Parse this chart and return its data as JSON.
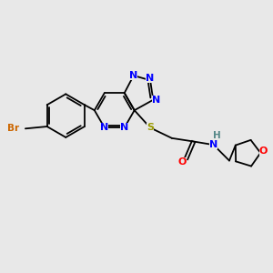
{
  "background_color": "#e8e8e8",
  "figsize": [
    3.0,
    3.0
  ],
  "dpi": 100,
  "bond_color": "#000000",
  "bond_width": 1.3,
  "bg": "#e8e8e8",
  "colors": {
    "N": "#0000ff",
    "Br": "#cc6600",
    "S": "#999900",
    "O": "#ff0000",
    "NH_H": "#558888",
    "C": "#000000"
  }
}
